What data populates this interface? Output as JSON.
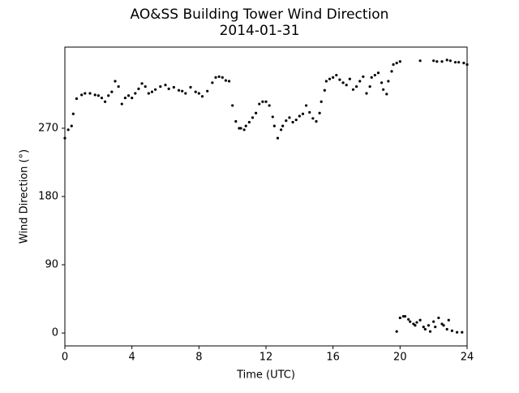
{
  "chart_data": {
    "type": "scatter",
    "title": "AO&SS Building Tower Wind Direction",
    "subtitle": "2014-01-31",
    "x_label": "Time (UTC)",
    "y_label": "Wind Direction (°)",
    "xlim": [
      0,
      24
    ],
    "ylim": [
      -17,
      377
    ],
    "xticks": [
      0,
      4,
      8,
      12,
      16,
      20,
      24
    ],
    "yticks": [
      0,
      90,
      180,
      270
    ],
    "color": "#000000",
    "x": [
      0,
      0.2,
      0.4,
      0.5,
      0.7,
      1.0,
      1.2,
      1.5,
      1.8,
      2.0,
      2.2,
      2.4,
      2.6,
      2.8,
      3.0,
      3.2,
      3.4,
      3.6,
      3.8,
      4.0,
      4.2,
      4.4,
      4.6,
      4.8,
      5.0,
      5.2,
      5.4,
      5.7,
      6.0,
      6.2,
      6.5,
      6.8,
      7.0,
      7.2,
      7.5,
      7.8,
      8.0,
      8.2,
      8.5,
      8.8,
      9.0,
      9.2,
      9.4,
      9.6,
      9.8,
      10.0,
      10.2,
      10.4,
      10.5,
      10.7,
      10.8,
      11.0,
      11.2,
      11.4,
      11.6,
      11.8,
      12.0,
      12.2,
      12.4,
      12.5,
      12.7,
      12.9,
      13.0,
      13.2,
      13.4,
      13.6,
      13.8,
      14.0,
      14.2,
      14.4,
      14.6,
      14.8,
      15.0,
      15.2,
      15.3,
      15.5,
      15.6,
      15.8,
      16.0,
      16.2,
      16.4,
      16.6,
      16.8,
      17.0,
      17.2,
      17.4,
      17.6,
      17.8,
      18.0,
      18.2,
      18.3,
      18.5,
      18.7,
      18.9,
      19.0,
      19.2,
      19.3,
      19.5,
      19.6,
      19.8,
      20.0,
      21.2,
      22.0,
      22.2,
      22.5,
      22.8,
      23.0,
      23.3,
      23.5,
      23.8,
      24.0,
      19.8,
      20.0,
      20.2,
      20.3,
      20.5,
      20.6,
      20.8,
      20.9,
      21.0,
      21.2,
      21.4,
      21.5,
      21.7,
      21.8,
      22.0,
      22.1,
      22.3,
      22.5,
      22.6,
      22.8,
      22.9,
      23.1,
      23.4,
      23.7
    ],
    "y": [
      257,
      268,
      273,
      289,
      309,
      314,
      316,
      316,
      314,
      313,
      310,
      305,
      313,
      318,
      332,
      325,
      302,
      310,
      313,
      310,
      316,
      322,
      329,
      325,
      316,
      318,
      321,
      325,
      327,
      322,
      324,
      320,
      319,
      316,
      324,
      318,
      316,
      312,
      319,
      330,
      337,
      338,
      337,
      333,
      332,
      300,
      279,
      270,
      270,
      268,
      273,
      278,
      284,
      290,
      302,
      305,
      305,
      300,
      285,
      273,
      257,
      268,
      273,
      280,
      284,
      278,
      281,
      286,
      289,
      300,
      291,
      283,
      279,
      290,
      305,
      320,
      332,
      335,
      337,
      340,
      334,
      330,
      327,
      335,
      321,
      325,
      332,
      338,
      316,
      325,
      337,
      340,
      343,
      330,
      321,
      315,
      332,
      345,
      354,
      356,
      358,
      359,
      359,
      358,
      358,
      360,
      359,
      357,
      357,
      356,
      354,
      2,
      20,
      22,
      22,
      18,
      15,
      12,
      10,
      14,
      17,
      8,
      5,
      10,
      2,
      15,
      8,
      20,
      12,
      10,
      5,
      17,
      3,
      1,
      1
    ]
  }
}
